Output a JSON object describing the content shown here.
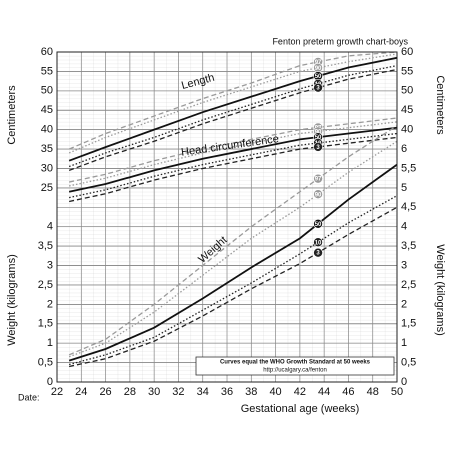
{
  "chart_data": {
    "type": "line",
    "title": "Fenton preterm growth chart-boys",
    "x_label": "Gestational age (weeks)",
    "date_label": "Date:",
    "y_label": "Centimeters",
    "y_weight_label": "Weight (kilograms)",
    "note": "Curves equal the WHO Growth Standard at 50 weeks",
    "url": "http://ucalgary.ca/fenton",
    "xlim": [
      22,
      50
    ],
    "xticks": [
      22,
      24,
      26,
      28,
      30,
      32,
      34,
      36,
      38,
      40,
      42,
      44,
      46,
      48,
      50
    ],
    "ylim": [
      -25,
      60
    ],
    "yticks": [
      60,
      55,
      50,
      45,
      40,
      35,
      30,
      25
    ],
    "yticks_weight": [
      4,
      {
        "value": 3.5,
        "label": "3,5"
      },
      3,
      {
        "value": 2.5,
        "label": "2,5"
      },
      2,
      {
        "value": 1.5,
        "label": "1,5"
      },
      1,
      {
        "value": 0.5,
        "label": "0,5"
      },
      0
    ],
    "y2lim": [
      0,
      8.5
    ],
    "y2ticks_length": [
      60,
      55,
      50,
      45,
      40
    ],
    "y2ticks": [
      6,
      {
        "value": 5.5,
        "label": "5,5"
      },
      5,
      {
        "value": 4.5,
        "label": "4,5"
      },
      4,
      {
        "value": 3.5,
        "label": "3,5"
      },
      3,
      {
        "value": 2.5,
        "label": "2,5"
      },
      2,
      {
        "value": 1.5,
        "label": "1,5"
      },
      1,
      {
        "value": 0.5,
        "label": "0,5"
      },
      0
    ],
    "grid": true,
    "x": [
      23,
      26,
      30,
      34,
      38,
      42,
      46,
      50
    ],
    "groups": [
      {
        "label": "Length",
        "axis": "y",
        "series": [
          {
            "name": "97",
            "color": "#9a9a9a",
            "dash": "5 3",
            "values": [
              35,
              39,
              43.5,
              48,
              52,
              56.5,
              59,
              60
            ]
          },
          {
            "name": "90",
            "color": "#9a9a9a",
            "dash": "1.5 2",
            "values": [
              34,
              38,
              42.5,
              47,
              51,
              55,
              57.5,
              59.5
            ]
          },
          {
            "name": "50",
            "color": "#111111",
            "dash": "",
            "values": [
              32,
              35.5,
              40,
              44.5,
              48.5,
              52.5,
              56,
              58.5
            ]
          },
          {
            "name": "10",
            "color": "#222222",
            "dash": "1.5 2",
            "values": [
              30.5,
              34,
              38,
              42.5,
              46.5,
              50.5,
              54,
              56.5
            ]
          },
          {
            "name": "3",
            "color": "#222222",
            "dash": "5 3",
            "values": [
              29.5,
              33,
              37,
              41.5,
              45.5,
              49.5,
              53,
              55.5
            ]
          }
        ]
      },
      {
        "label": "Head circumference",
        "axis": "y",
        "series": [
          {
            "name": "97",
            "color": "#9a9a9a",
            "dash": "5 3",
            "values": [
              26.5,
              28.5,
              32,
              35,
              37.5,
              40,
              41.5,
              43
            ]
          },
          {
            "name": "90",
            "color": "#9a9a9a",
            "dash": "1.5 2",
            "values": [
              25.5,
              27.5,
              31,
              34,
              36.5,
              39,
              40.5,
              42
            ]
          },
          {
            "name": "50",
            "color": "#111111",
            "dash": "",
            "values": [
              24,
              26,
              29.5,
              32.5,
              35,
              37.5,
              39,
              40.5
            ]
          },
          {
            "name": "10",
            "color": "#222222",
            "dash": "1.5 2",
            "values": [
              22.5,
              24.5,
              28,
              31,
              33.5,
              36,
              37.5,
              39
            ]
          },
          {
            "name": "3",
            "color": "#222222",
            "dash": "5 3",
            "values": [
              21.5,
              23.5,
              27,
              30,
              32.5,
              35,
              36.5,
              38
            ]
          }
        ]
      },
      {
        "label": "Weight",
        "axis": "y2",
        "series": [
          {
            "name": "97",
            "color": "#9a9a9a",
            "dash": "5 3",
            "values": [
              0.7,
              1.1,
              2.0,
              3.0,
              4.0,
              4.9,
              5.8,
              6.6
            ]
          },
          {
            "name": "90",
            "color": "#9a9a9a",
            "dash": "1.5 2",
            "values": [
              0.65,
              1.0,
              1.8,
              2.75,
              3.7,
              4.5,
              5.4,
              6.2
            ]
          },
          {
            "name": "50",
            "color": "#111111",
            "dash": "",
            "values": [
              0.55,
              0.85,
              1.4,
              2.15,
              2.95,
              3.7,
              4.7,
              5.6
            ]
          },
          {
            "name": "10",
            "color": "#222222",
            "dash": "1.5 2",
            "values": [
              0.45,
              0.7,
              1.15,
              1.85,
              2.55,
              3.3,
              4.1,
              4.8
            ]
          },
          {
            "name": "3",
            "color": "#222222",
            "dash": "5 3",
            "values": [
              0.4,
              0.6,
              1.05,
              1.7,
              2.4,
              3.05,
              3.8,
              4.5
            ]
          }
        ]
      }
    ]
  }
}
